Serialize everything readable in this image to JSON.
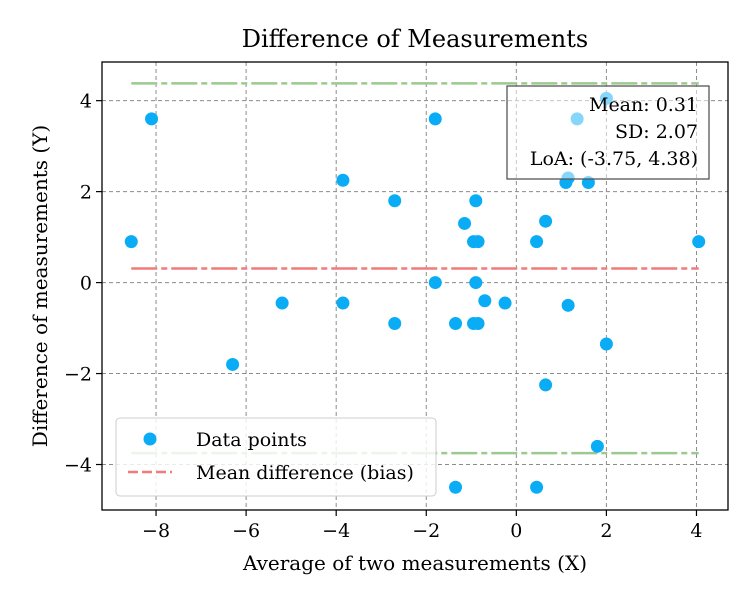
{
  "chart_data": {
    "type": "scatter",
    "title": "Difference of Measurements",
    "xlabel": "Average of two measurements (X)",
    "ylabel": "Difference of measurements (Y)",
    "xlim": [
      -9.2,
      4.7
    ],
    "ylim": [
      -5.0,
      4.85
    ],
    "xticks": [
      -8,
      -6,
      -4,
      -2,
      0,
      2,
      4
    ],
    "xtick_labels": [
      "−8",
      "−6",
      "−4",
      "−2",
      "0",
      "2",
      "4"
    ],
    "yticks": [
      -4,
      -2,
      0,
      2,
      4
    ],
    "ytick_labels": [
      "−4",
      "−2",
      "0",
      "2",
      "4"
    ],
    "grid": true,
    "points": [
      {
        "x": -8.55,
        "y": 0.9
      },
      {
        "x": -8.1,
        "y": 3.6
      },
      {
        "x": -6.3,
        "y": -1.8
      },
      {
        "x": -5.2,
        "y": -0.45
      },
      {
        "x": -3.85,
        "y": 2.25
      },
      {
        "x": -3.85,
        "y": -0.45
      },
      {
        "x": -2.7,
        "y": 1.8
      },
      {
        "x": -2.7,
        "y": -0.9
      },
      {
        "x": -1.8,
        "y": 3.6
      },
      {
        "x": -1.8,
        "y": 0.0
      },
      {
        "x": -1.35,
        "y": -0.9
      },
      {
        "x": -1.35,
        "y": -4.5
      },
      {
        "x": -1.15,
        "y": 1.3
      },
      {
        "x": -0.95,
        "y": 0.9
      },
      {
        "x": -0.9,
        "y": 1.8
      },
      {
        "x": -0.9,
        "y": 0.0
      },
      {
        "x": -0.95,
        "y": -0.9
      },
      {
        "x": -0.85,
        "y": 0.9
      },
      {
        "x": -0.85,
        "y": -0.9
      },
      {
        "x": -0.7,
        "y": -0.4
      },
      {
        "x": -0.25,
        "y": -0.45
      },
      {
        "x": 0.45,
        "y": 0.9
      },
      {
        "x": 0.45,
        "y": -4.5
      },
      {
        "x": 0.65,
        "y": 1.35
      },
      {
        "x": 0.65,
        "y": -2.25
      },
      {
        "x": 1.1,
        "y": 2.2
      },
      {
        "x": 1.15,
        "y": 2.3
      },
      {
        "x": 1.15,
        "y": -0.5
      },
      {
        "x": 1.35,
        "y": 3.6
      },
      {
        "x": 1.6,
        "y": 2.2
      },
      {
        "x": 1.8,
        "y": -3.6
      },
      {
        "x": 2.0,
        "y": 4.05
      },
      {
        "x": 2.0,
        "y": -1.35
      },
      {
        "x": 4.05,
        "y": 0.9
      }
    ],
    "x_range_lines": [
      -8.55,
      4.05
    ],
    "mean_difference": 0.31,
    "upper_loa": 4.38,
    "lower_loa": -3.75,
    "stats_box": {
      "line1": "Mean: 0.31",
      "line2": "SD: 2.07",
      "line3": "LoA: (-3.75, 4.38)",
      "placement": "top-right"
    },
    "legend": {
      "placement": "lower-left",
      "items": [
        "Data points",
        "Mean difference (bias)"
      ]
    },
    "colors": {
      "points": "#0aadf5",
      "mean_line": "#f07b7b",
      "loa_line": "#9cc98f",
      "grid": "#8c8c8c",
      "axes": "#000000"
    }
  }
}
